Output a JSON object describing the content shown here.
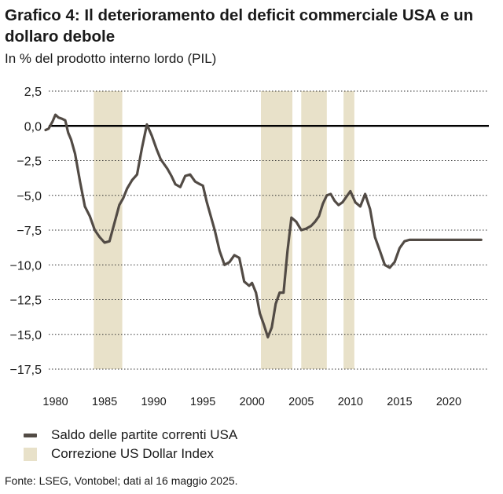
{
  "title": "Grafico 4: Il deterioramento del deficit commerciale USA e un dollaro debole",
  "subtitle": "In % del prodotto interno lordo (PIL)",
  "source": "Fonte: LSEG, Vontobel; dati al 16 maggio 2025.",
  "chart_data": {
    "type": "line",
    "title": "Grafico 4: Il deterioramento del deficit commerciale USA e un dollaro debole",
    "ylabel": "In % del prodotto interno lordo (PIL)",
    "xlim": [
      1979,
      2024
    ],
    "ylim": [
      -17.5,
      2.5
    ],
    "y_ticks": [
      2.5,
      0.0,
      -2.5,
      -5.0,
      -7.5,
      -10.0,
      -12.5,
      -15.0,
      -17.5
    ],
    "y_tick_labels": [
      "2,5",
      "0,0",
      "−2,5",
      "−5,0",
      "−7,5",
      "−10,0",
      "−12,5",
      "−15,0",
      "−17,5"
    ],
    "x_ticks": [
      1980,
      1985,
      1990,
      1995,
      2000,
      2005,
      2010,
      2015,
      2020
    ],
    "x_tick_labels": [
      "1980",
      "1985",
      "1990",
      "1995",
      "2000",
      "2005",
      "2010",
      "2015",
      "2020"
    ],
    "grid": "horizontal dotted",
    "legend_position": "bottom-left",
    "colors": {
      "line": "#524b45",
      "shade": "#e8e1c9",
      "zero_line": "#000000",
      "grid": "#333333"
    },
    "series": [
      {
        "name": "Saldo delle partite correnti USA",
        "x": [
          1979.0,
          1979.3,
          1979.7,
          1980.0,
          1980.3,
          1980.7,
          1981.0,
          1981.3,
          1981.6,
          1982.0,
          1982.5,
          1983.0,
          1983.5,
          1984.0,
          1984.5,
          1985.0,
          1985.5,
          1986.0,
          1986.5,
          1986.9,
          1987.3,
          1987.8,
          1988.3,
          1988.8,
          1989.3,
          1989.8,
          1990.3,
          1990.7,
          1991.0,
          1991.4,
          1991.8,
          1992.2,
          1992.7,
          1993.2,
          1993.7,
          1994.2,
          1994.7,
          1995.0,
          1995.4,
          1995.8,
          1996.2,
          1996.7,
          1997.2,
          1997.7,
          1998.2,
          1998.7,
          1999.2,
          1999.7,
          2000.0,
          2000.4,
          2000.8,
          2001.2,
          2001.6,
          2002.0,
          2002.4,
          2002.8,
          2003.2,
          2003.6,
          2004.0,
          2004.5,
          2005.0,
          2005.5,
          2006.0,
          2006.4,
          2006.8,
          2007.2,
          2007.6,
          2008.0,
          2008.4,
          2008.8,
          2009.2,
          2009.6,
          2010.0,
          2010.5,
          2011.0,
          2011.5,
          2012.0,
          2012.5,
          2013.0,
          2013.5,
          2014.0,
          2014.5,
          2015.0,
          2015.5,
          2016.0,
          2016.5,
          2017.0,
          2017.5,
          2018.0,
          2018.5,
          2019.0,
          2019.5,
          2020.0,
          2020.5,
          2021.0,
          2021.5,
          2022.0,
          2022.5,
          2023.0,
          2023.3
        ],
        "y": [
          -0.3,
          -0.2,
          0.3,
          0.8,
          0.6,
          0.5,
          0.4,
          -0.5,
          -1.0,
          -2.0,
          -4.0,
          -5.8,
          -6.5,
          -7.5,
          -8.0,
          -8.4,
          -8.3,
          -7.0,
          -5.7,
          -5.2,
          -4.5,
          -3.9,
          -3.5,
          -1.6,
          0.1,
          -0.7,
          -1.7,
          -2.4,
          -2.7,
          -3.1,
          -3.6,
          -4.2,
          -4.4,
          -3.6,
          -3.5,
          -4.0,
          -4.2,
          -4.3,
          -5.5,
          -6.5,
          -7.5,
          -9.0,
          -10.0,
          -9.8,
          -9.3,
          -9.5,
          -11.2,
          -11.5,
          -11.3,
          -12.0,
          -13.5,
          -14.3,
          -15.2,
          -14.5,
          -12.8,
          -12.0,
          -12.0,
          -9.0,
          -6.6,
          -6.9,
          -7.5,
          -7.4,
          -7.2,
          -6.9,
          -6.5,
          -5.6,
          -5.0,
          -4.9,
          -5.4,
          -5.7,
          -5.5,
          -5.1,
          -4.7,
          -5.5,
          -5.8,
          -4.9,
          -6.0,
          -8.0,
          -9.0,
          -10.0,
          -10.2,
          -9.8,
          -8.8,
          -8.3,
          -8.2,
          -8.2,
          -8.2,
          -8.2,
          -8.2,
          -8.2,
          -8.2,
          -8.2,
          -8.2,
          -8.2,
          -8.2,
          -8.2,
          -8.2,
          -8.2,
          -8.2,
          -8.2
        ]
      }
    ],
    "shaded_regions_name": "Correzione US Dollar Index",
    "shaded_regions": [
      [
        1983.9,
        1986.8
      ],
      [
        2000.9,
        2004.1
      ],
      [
        2005.0,
        2007.6
      ],
      [
        2009.3,
        2010.4
      ]
    ]
  },
  "legend": {
    "line_label": "Saldo delle partite correnti USA",
    "shade_label": "Correzione US Dollar Index"
  }
}
